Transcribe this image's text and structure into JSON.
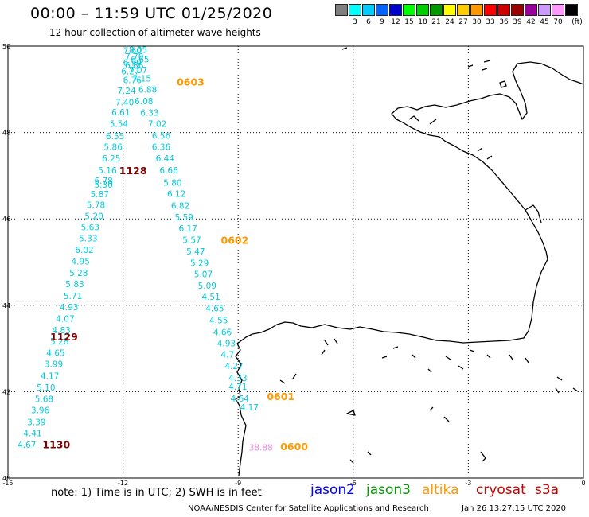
{
  "header": {
    "title": "00:00 – 11:59 UTC 01/25/2020",
    "subtitle": "12 hour collection of altimeter wave heights"
  },
  "legend": {
    "unit": "(ft)",
    "bins": [
      {
        "label": "",
        "color": "#7f7f7f"
      },
      {
        "label": "3",
        "color": "#00ffff"
      },
      {
        "label": "6",
        "color": "#00ccff"
      },
      {
        "label": "9",
        "color": "#0066ff"
      },
      {
        "label": "12",
        "color": "#0000cc"
      },
      {
        "label": "15",
        "color": "#00ff00"
      },
      {
        "label": "18",
        "color": "#00cc00"
      },
      {
        "label": "21",
        "color": "#009900"
      },
      {
        "label": "24",
        "color": "#ffff00"
      },
      {
        "label": "27",
        "color": "#ffcc00"
      },
      {
        "label": "30",
        "color": "#ff9900"
      },
      {
        "label": "33",
        "color": "#ff0000"
      },
      {
        "label": "36",
        "color": "#cc0000"
      },
      {
        "label": "39",
        "color": "#990000"
      },
      {
        "label": "42",
        "color": "#990099"
      },
      {
        "label": "45",
        "color": "#cc99ff"
      },
      {
        "label": "70",
        "color": "#ff99ff"
      },
      {
        "label": "",
        "color": "#000000"
      }
    ]
  },
  "axes": {
    "lon_ticks": [
      "-15",
      "-12",
      "-9",
      "-6",
      "-3",
      "0"
    ],
    "lat_ticks": [
      "50",
      "48",
      "46",
      "44",
      "42",
      "40"
    ]
  },
  "tracks": [
    {
      "color": "#00ccdd",
      "points": [
        {
          "lon": -12.0,
          "lat": 49.9,
          "v": "7.60"
        },
        {
          "lon": -11.85,
          "lat": 49.92,
          "v": "8.05"
        },
        {
          "lon": -11.95,
          "lat": 49.76,
          "v": "7.70"
        },
        {
          "lon": -11.8,
          "lat": 49.7,
          "v": "6.65"
        },
        {
          "lon": -12.0,
          "lat": 49.62,
          "v": "6.99"
        },
        {
          "lon": -11.95,
          "lat": 49.56,
          "v": "6.86"
        },
        {
          "lon": -11.85,
          "lat": 49.45,
          "v": "7.07"
        },
        {
          "lon": -12.05,
          "lat": 49.42,
          "v": "6.27"
        },
        {
          "lon": -11.75,
          "lat": 49.25,
          "v": "7.15"
        },
        {
          "lon": -12.0,
          "lat": 49.22,
          "v": "6.76"
        },
        {
          "lon": -11.6,
          "lat": 49.0,
          "v": "6.88"
        },
        {
          "lon": -12.15,
          "lat": 48.97,
          "v": "7.24"
        },
        {
          "lon": -11.7,
          "lat": 48.73,
          "v": "6.08"
        },
        {
          "lon": -12.2,
          "lat": 48.7,
          "v": "7.40"
        },
        {
          "lon": -11.55,
          "lat": 48.46,
          "v": "6.33"
        },
        {
          "lon": -12.3,
          "lat": 48.47,
          "v": "6.61"
        },
        {
          "lon": -11.35,
          "lat": 48.2,
          "v": "7.02"
        },
        {
          "lon": -12.35,
          "lat": 48.2,
          "v": "5.54"
        },
        {
          "lon": -11.25,
          "lat": 47.93,
          "v": "6.56"
        },
        {
          "lon": -12.45,
          "lat": 47.92,
          "v": "6.55"
        },
        {
          "lon": -11.25,
          "lat": 47.67,
          "v": "6.36"
        },
        {
          "lon": -12.5,
          "lat": 47.67,
          "v": "5.86"
        },
        {
          "lon": -11.15,
          "lat": 47.4,
          "v": "6.44"
        },
        {
          "lon": -12.55,
          "lat": 47.4,
          "v": "6.25"
        },
        {
          "lon": -11.05,
          "lat": 47.13,
          "v": "6.66"
        },
        {
          "lon": -12.65,
          "lat": 47.13,
          "v": "5.16"
        },
        {
          "lon": -12.75,
          "lat": 46.89,
          "v": "6.78"
        },
        {
          "lon": -12.75,
          "lat": 46.8,
          "v": "5.30"
        },
        {
          "lon": -10.95,
          "lat": 46.84,
          "v": "5.80"
        },
        {
          "lon": -12.85,
          "lat": 46.57,
          "v": "5.87"
        },
        {
          "lon": -10.85,
          "lat": 46.58,
          "v": "6.12"
        },
        {
          "lon": -12.95,
          "lat": 46.33,
          "v": "5.78"
        },
        {
          "lon": -10.75,
          "lat": 46.31,
          "v": "6.82"
        },
        {
          "lon": -13.0,
          "lat": 46.07,
          "v": "5.20"
        },
        {
          "lon": -10.65,
          "lat": 46.04,
          "v": "5.59"
        },
        {
          "lon": -13.1,
          "lat": 45.81,
          "v": "5.63"
        },
        {
          "lon": -10.55,
          "lat": 45.78,
          "v": "6.17"
        },
        {
          "lon": -13.15,
          "lat": 45.55,
          "v": "5.33"
        },
        {
          "lon": -10.45,
          "lat": 45.52,
          "v": "5.57"
        },
        {
          "lon": -13.25,
          "lat": 45.29,
          "v": "6.02"
        },
        {
          "lon": -10.35,
          "lat": 45.25,
          "v": "5.47"
        },
        {
          "lon": -13.35,
          "lat": 45.02,
          "v": "4.95"
        },
        {
          "lon": -10.25,
          "lat": 44.98,
          "v": "5.29"
        },
        {
          "lon": -13.4,
          "lat": 44.75,
          "v": "5.28"
        },
        {
          "lon": -10.15,
          "lat": 44.72,
          "v": "5.07"
        },
        {
          "lon": -13.5,
          "lat": 44.49,
          "v": "5.83"
        },
        {
          "lon": -10.05,
          "lat": 44.46,
          "v": "5.09"
        },
        {
          "lon": -13.55,
          "lat": 44.22,
          "v": "5.71"
        },
        {
          "lon": -9.95,
          "lat": 44.2,
          "v": "4.51"
        },
        {
          "lon": -13.65,
          "lat": 43.96,
          "v": "4.93"
        },
        {
          "lon": -9.85,
          "lat": 43.93,
          "v": "4.65"
        },
        {
          "lon": -13.75,
          "lat": 43.69,
          "v": "4.07"
        },
        {
          "lon": -9.75,
          "lat": 43.66,
          "v": "4.55"
        },
        {
          "lon": -13.85,
          "lat": 43.43,
          "v": "4.83"
        },
        {
          "lon": -9.65,
          "lat": 43.38,
          "v": "4.66"
        },
        {
          "lon": -13.9,
          "lat": 43.17,
          "v": "5.28"
        },
        {
          "lon": -9.55,
          "lat": 43.12,
          "v": "4.93"
        },
        {
          "lon": -14.0,
          "lat": 42.9,
          "v": "4.65"
        },
        {
          "lon": -9.45,
          "lat": 42.86,
          "v": "4.7"
        },
        {
          "lon": -14.05,
          "lat": 42.64,
          "v": "3.99"
        },
        {
          "lon": -9.35,
          "lat": 42.6,
          "v": "4.27"
        },
        {
          "lon": -14.15,
          "lat": 42.37,
          "v": "4.17"
        },
        {
          "lon": -9.25,
          "lat": 42.32,
          "v": "4.33"
        },
        {
          "lon": -14.25,
          "lat": 42.1,
          "v": "5.10"
        },
        {
          "lon": -9.25,
          "lat": 42.12,
          "v": "4.71"
        },
        {
          "lon": -14.3,
          "lat": 41.83,
          "v": "5.68"
        },
        {
          "lon": -9.2,
          "lat": 41.84,
          "v": "4.64"
        },
        {
          "lon": -14.4,
          "lat": 41.57,
          "v": "3.96"
        },
        {
          "lon": -8.95,
          "lat": 41.64,
          "v": "4.17"
        },
        {
          "lon": -14.5,
          "lat": 41.3,
          "v": "3.39"
        },
        {
          "lon": -14.6,
          "lat": 41.04,
          "v": "4.41"
        },
        {
          "lon": -14.75,
          "lat": 40.77,
          "v": "4.67"
        }
      ]
    },
    {
      "color": "#ee88dd",
      "points": [
        {
          "lon": -8.72,
          "lat": 40.71,
          "v": "38.88"
        }
      ]
    }
  ],
  "time_labels": [
    {
      "lon": -10.6,
      "lat": 49.18,
      "text": "0603",
      "color": "#ff9900"
    },
    {
      "lon": -12.1,
      "lat": 47.13,
      "text": "1128",
      "color": "#800000"
    },
    {
      "lon": -9.45,
      "lat": 45.52,
      "text": "0602",
      "color": "#ff9900"
    },
    {
      "lon": -13.9,
      "lat": 43.28,
      "text": "1129",
      "color": "#800000"
    },
    {
      "lon": -8.25,
      "lat": 41.9,
      "text": "0601",
      "color": "#ff9900"
    },
    {
      "lon": -14.1,
      "lat": 40.78,
      "text": "1130",
      "color": "#800000"
    },
    {
      "lon": -7.9,
      "lat": 40.74,
      "text": "0600",
      "color": "#ff9900"
    }
  ],
  "footer": {
    "note": "note: 1) Time is in UTC; 2) SWH is in feet",
    "satellites": [
      {
        "name": "jason2",
        "color": "#0000ff"
      },
      {
        "name": "jason3",
        "color": "#009900"
      },
      {
        "name": "altika",
        "color": "#ff9900"
      },
      {
        "name": "cryosat",
        "color": "#cc0000"
      },
      {
        "name": "s3a",
        "color": "#cc0000"
      }
    ],
    "credit": "NOAA/NESDIS Center for Satellite Applications and Research",
    "timestamp": "Jan 26 13:27:15 UTC 2020"
  }
}
